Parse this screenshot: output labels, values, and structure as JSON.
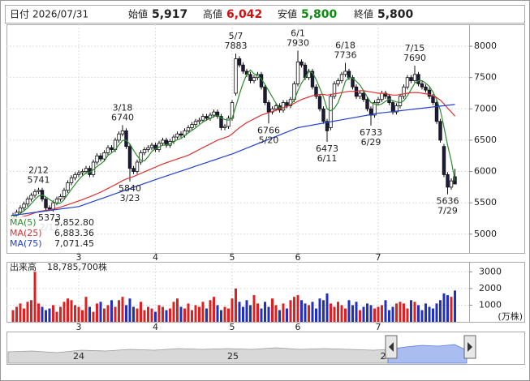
{
  "header": {
    "date_label": "日付",
    "date": "2026/07/31",
    "open_label": "始値",
    "open": "5,917",
    "high_label": "高値",
    "high": "6,042",
    "low_label": "安値",
    "low": "5,800",
    "close_label": "終値",
    "close": "5,800"
  },
  "navigator": {
    "labels": [
      "24",
      "25",
      "2"
    ]
  },
  "chart_data": {
    "type": "candlestick",
    "categories": [
      "2/2",
      "2/3",
      "2/4",
      "2/5",
      "2/6",
      "2/9",
      "2/10",
      "2/12",
      "2/13",
      "2/16",
      "2/17",
      "2/18",
      "2/19",
      "2/20",
      "2/24",
      "2/25",
      "2/26",
      "2/27",
      "3/2",
      "3/3",
      "3/4",
      "3/5",
      "3/6",
      "3/9",
      "3/10",
      "3/11",
      "3/12",
      "3/13",
      "3/16",
      "3/17",
      "3/18",
      "3/19",
      "3/23",
      "3/24",
      "3/25",
      "3/26",
      "3/27",
      "3/30",
      "3/31",
      "4/1",
      "4/2",
      "4/3",
      "4/6",
      "4/7",
      "4/8",
      "4/9",
      "4/10",
      "4/13",
      "4/14",
      "4/15",
      "4/16",
      "4/17",
      "4/20",
      "4/21",
      "4/22",
      "4/23",
      "4/24",
      "4/27",
      "4/28",
      "4/30",
      "5/1",
      "5/7",
      "5/8",
      "5/11",
      "5/12",
      "5/13",
      "5/14",
      "5/15",
      "5/18",
      "5/19",
      "5/20",
      "5/21",
      "5/22",
      "5/25",
      "5/26",
      "5/27",
      "5/28",
      "5/29",
      "6/1",
      "6/2",
      "6/3",
      "6/4",
      "6/5",
      "6/8",
      "6/9",
      "6/10",
      "6/11",
      "6/12",
      "6/15",
      "6/16",
      "6/17",
      "6/18",
      "6/19",
      "6/22",
      "6/23",
      "6/24",
      "6/25",
      "6/26",
      "6/29",
      "6/30",
      "7/1",
      "7/2",
      "7/3",
      "7/6",
      "7/7",
      "7/8",
      "7/9",
      "7/10",
      "7/13",
      "7/14",
      "7/15",
      "7/16",
      "7/17",
      "7/21",
      "7/22",
      "7/23",
      "7/24",
      "7/27",
      "7/28",
      "7/29",
      "7/30",
      "7/31"
    ],
    "open": [
      5260,
      5300,
      5350,
      5420,
      5480,
      5560,
      5620,
      5680,
      5700,
      5560,
      5420,
      5400,
      5500,
      5560,
      5600,
      5700,
      5820,
      5900,
      5950,
      5980,
      6000,
      6050,
      5950,
      6150,
      6250,
      6200,
      6300,
      6380,
      6350,
      6500,
      6600,
      6650,
      6400,
      6050,
      6000,
      6150,
      6300,
      6350,
      6380,
      6420,
      6350,
      6450,
      6500,
      6420,
      6480,
      6550,
      6600,
      6580,
      6650,
      6700,
      6750,
      6800,
      6820,
      6880,
      6850,
      6900,
      6950,
      6880,
      6700,
      6720,
      6850,
      7250,
      7800,
      7700,
      7600,
      7550,
      7450,
      7500,
      7550,
      7350,
      7100,
      6950,
      7000,
      7050,
      6980,
      7100,
      7050,
      7150,
      7400,
      7750,
      7700,
      7500,
      7600,
      7350,
      7200,
      7000,
      6800,
      6700,
      7200,
      7400,
      7450,
      7550,
      7600,
      7500,
      7350,
      7200,
      7250,
      7150,
      7000,
      6900,
      7100,
      7150,
      7250,
      7200,
      7100,
      6950,
      7050,
      7200,
      7350,
      7500,
      7450,
      7550,
      7400,
      7350,
      7300,
      7200,
      7100,
      6800,
      6400,
      5950,
      5750,
      5917
    ],
    "high": [
      5340,
      5390,
      5460,
      5520,
      5600,
      5660,
      5720,
      5741,
      5740,
      5600,
      5460,
      5540,
      5600,
      5640,
      5740,
      5860,
      5940,
      5990,
      6020,
      6040,
      6090,
      6090,
      6190,
      6290,
      6290,
      6340,
      6420,
      6420,
      6540,
      6640,
      6740,
      6690,
      6440,
      6090,
      6190,
      6340,
      6390,
      6420,
      6460,
      6460,
      6490,
      6540,
      6540,
      6520,
      6590,
      6640,
      6640,
      6690,
      6740,
      6790,
      6840,
      6860,
      6920,
      6920,
      6940,
      6990,
      6990,
      6920,
      6760,
      6890,
      7140,
      7883,
      7840,
      7740,
      7640,
      7590,
      7540,
      7590,
      7590,
      7390,
      7140,
      7040,
      7090,
      7090,
      7140,
      7140,
      7190,
      7440,
      7930,
      7790,
      7740,
      7640,
      7640,
      7390,
      7240,
      7040,
      6840,
      7240,
      7440,
      7490,
      7590,
      7736,
      7640,
      7540,
      7390,
      7290,
      7290,
      7190,
      7040,
      7140,
      7190,
      7290,
      7290,
      7240,
      7140,
      7090,
      7240,
      7390,
      7540,
      7540,
      7690,
      7590,
      7440,
      7390,
      7340,
      7240,
      7140,
      6840,
      6440,
      5990,
      5890,
      6042
    ],
    "low": [
      5220,
      5260,
      5310,
      5380,
      5440,
      5520,
      5580,
      5640,
      5520,
      5380,
      5373,
      5360,
      5460,
      5520,
      5560,
      5660,
      5780,
      5860,
      5910,
      5940,
      5960,
      5910,
      5910,
      6110,
      6160,
      6160,
      6260,
      6310,
      6310,
      6460,
      6560,
      6360,
      5840,
      5960,
      5960,
      6110,
      6260,
      6310,
      6340,
      6310,
      6310,
      6410,
      6380,
      6380,
      6440,
      6510,
      6540,
      6540,
      6610,
      6660,
      6710,
      6760,
      6780,
      6810,
      6810,
      6860,
      6840,
      6660,
      6660,
      6680,
      6810,
      7210,
      7660,
      7560,
      7510,
      7410,
      7410,
      7460,
      7310,
      7060,
      6766,
      6910,
      6960,
      6940,
      6940,
      7010,
      7010,
      7110,
      7360,
      7660,
      7460,
      7460,
      7310,
      7160,
      6960,
      6760,
      6473,
      6660,
      7160,
      7360,
      7410,
      7510,
      7460,
      7310,
      7160,
      7160,
      7110,
      6960,
      6733,
      6860,
      7060,
      7110,
      7160,
      7060,
      6910,
      6910,
      7010,
      7160,
      7310,
      7410,
      7410,
      7360,
      7310,
      7260,
      7160,
      7060,
      6760,
      6460,
      5910,
      5636,
      5710,
      5800
    ],
    "close": [
      5300,
      5350,
      5420,
      5480,
      5560,
      5620,
      5680,
      5700,
      5560,
      5420,
      5400,
      5500,
      5560,
      5600,
      5700,
      5820,
      5900,
      5950,
      5980,
      6000,
      6050,
      5950,
      6150,
      6250,
      6200,
      6300,
      6380,
      6350,
      6500,
      6600,
      6650,
      6400,
      6050,
      6000,
      6150,
      6300,
      6350,
      6380,
      6420,
      6350,
      6450,
      6500,
      6420,
      6480,
      6550,
      6600,
      6580,
      6650,
      6700,
      6750,
      6800,
      6820,
      6880,
      6850,
      6900,
      6950,
      6880,
      6700,
      6720,
      6850,
      7100,
      7800,
      7700,
      7600,
      7550,
      7450,
      7500,
      7550,
      7350,
      7100,
      6950,
      7000,
      7050,
      6980,
      7100,
      7050,
      7150,
      7400,
      7750,
      7700,
      7500,
      7600,
      7350,
      7200,
      7000,
      6800,
      6650,
      7200,
      7400,
      7450,
      7550,
      7600,
      7500,
      7350,
      7200,
      7250,
      7150,
      7000,
      6900,
      7100,
      7150,
      7250,
      7200,
      7100,
      6950,
      7050,
      7200,
      7350,
      7500,
      7450,
      7550,
      7400,
      7350,
      7300,
      7200,
      7100,
      6800,
      6500,
      5950,
      5750,
      5850,
      5800
    ],
    "up_color": "#ffffff",
    "down_color": "#1c1c3c",
    "edge_color": "#111111",
    "ylim": [
      4700,
      8350
    ],
    "yticks": [
      5000,
      5500,
      6000,
      6500,
      7000,
      7500,
      8000
    ],
    "grid": true,
    "month_ticks": [
      {
        "value": "3/2",
        "label": "3"
      },
      {
        "value": "4/1",
        "label": "4"
      },
      {
        "value": "5/1",
        "label": "5"
      },
      {
        "value": "6/1",
        "label": "6"
      },
      {
        "value": "7/1",
        "label": "7"
      }
    ],
    "ma": [
      {
        "name": "MA(5)",
        "color": "#2e8b2e",
        "last_label": "5,852.80",
        "values": [
          5280,
          5300,
          5330,
          5370,
          5422,
          5486,
          5552,
          5608,
          5624,
          5596,
          5552,
          5516,
          5488,
          5496,
          5552,
          5636,
          5716,
          5794,
          5870,
          5930,
          5976,
          5986,
          6026,
          6080,
          6120,
          6170,
          6256,
          6296,
          6346,
          6426,
          6496,
          6500,
          6440,
          6340,
          6250,
          6180,
          6170,
          6236,
          6320,
          6360,
          6390,
          6420,
          6428,
          6440,
          6480,
          6510,
          6526,
          6572,
          6616,
          6656,
          6696,
          6744,
          6790,
          6820,
          6850,
          6880,
          6892,
          6856,
          6830,
          6820,
          6850,
          7034,
          7234,
          7410,
          7550,
          7620,
          7560,
          7530,
          7480,
          7390,
          7290,
          7190,
          7090,
          7016,
          7016,
          7036,
          7066,
          7136,
          7290,
          7410,
          7500,
          7590,
          7580,
          7470,
          7330,
          7190,
          7000,
          6970,
          7010,
          7100,
          7250,
          7440,
          7500,
          7490,
          7440,
          7380,
          7290,
          7190,
          7100,
          7080,
          7060,
          7080,
          7120,
          7160,
          7130,
          7110,
          7100,
          7130,
          7210,
          7310,
          7410,
          7450,
          7450,
          7410,
          7360,
          7270,
          7150,
          6980,
          6710,
          6420,
          6170,
          5852.8
        ]
      },
      {
        "name": "MA(25)",
        "color": "#e03030",
        "last_label": "6,883.36",
        "values": [
          5250,
          5260,
          5270,
          5285,
          5300,
          5320,
          5340,
          5360,
          5370,
          5380,
          5390,
          5400,
          5415,
          5430,
          5450,
          5470,
          5490,
          5510,
          5530,
          5550,
          5575,
          5595,
          5620,
          5645,
          5670,
          5700,
          5730,
          5760,
          5790,
          5820,
          5855,
          5880,
          5900,
          5920,
          5945,
          5970,
          5995,
          6020,
          6045,
          6070,
          6095,
          6120,
          6140,
          6160,
          6180,
          6200,
          6220,
          6240,
          6260,
          6290,
          6320,
          6350,
          6380,
          6410,
          6440,
          6470,
          6500,
          6520,
          6540,
          6560,
          6600,
          6650,
          6700,
          6740,
          6780,
          6810,
          6840,
          6870,
          6900,
          6920,
          6940,
          6960,
          6980,
          7000,
          7020,
          7040,
          7060,
          7090,
          7120,
          7150,
          7170,
          7190,
          7210,
          7220,
          7230,
          7230,
          7220,
          7230,
          7240,
          7250,
          7260,
          7270,
          7280,
          7280,
          7280,
          7290,
          7290,
          7280,
          7270,
          7260,
          7250,
          7250,
          7240,
          7230,
          7220,
          7220,
          7230,
          7240,
          7250,
          7260,
          7260,
          7260,
          7250,
          7240,
          7230,
          7210,
          7180,
          7140,
          7080,
          7010,
          6950,
          6883.36
        ]
      },
      {
        "name": "MA(75)",
        "color": "#2040d0",
        "last_label": "7,071.45",
        "values": [
          5300,
          5308,
          5316,
          5323,
          5331,
          5339,
          5347,
          5354,
          5362,
          5370,
          5378,
          5386,
          5393,
          5401,
          5409,
          5417,
          5424,
          5432,
          5440,
          5460,
          5481,
          5501,
          5522,
          5542,
          5563,
          5583,
          5604,
          5624,
          5645,
          5665,
          5686,
          5706,
          5727,
          5747,
          5768,
          5788,
          5809,
          5829,
          5850,
          5870,
          5890,
          5909,
          5929,
          5948,
          5968,
          5987,
          6007,
          6026,
          6046,
          6065,
          6085,
          6104,
          6124,
          6143,
          6163,
          6182,
          6202,
          6221,
          6241,
          6260,
          6280,
          6303,
          6327,
          6350,
          6373,
          6397,
          6420,
          6443,
          6467,
          6490,
          6513,
          6537,
          6560,
          6583,
          6607,
          6630,
          6653,
          6677,
          6700,
          6710,
          6721,
          6731,
          6742,
          6752,
          6763,
          6773,
          6784,
          6794,
          6805,
          6815,
          6825,
          6836,
          6846,
          6857,
          6867,
          6878,
          6888,
          6899,
          6909,
          6920,
          6930,
          6937,
          6943,
          6950,
          6957,
          6964,
          6970,
          6977,
          6984,
          6990,
          6997,
          7004,
          7010,
          7017,
          7024,
          7031,
          7037,
          7044,
          7051,
          7057,
          7064,
          7071.45
        ]
      }
    ],
    "annotations": [
      {
        "date": "2/12",
        "value": 5741,
        "side": "above"
      },
      {
        "date": "2/17",
        "value": 5373,
        "side": "below"
      },
      {
        "date": "3/18",
        "value": 6740,
        "side": "above"
      },
      {
        "date": "3/23",
        "value": 5840,
        "side": "below"
      },
      {
        "date": "5/7",
        "value": 7883,
        "side": "above"
      },
      {
        "date": "5/20",
        "value": 6766,
        "side": "below"
      },
      {
        "date": "6/1",
        "value": 7930,
        "side": "above"
      },
      {
        "date": "6/11",
        "value": 6473,
        "side": "below"
      },
      {
        "date": "6/18",
        "value": 7736,
        "side": "above"
      },
      {
        "date": "6/29",
        "value": 6733,
        "side": "below"
      },
      {
        "date": "7/15",
        "value": 7690,
        "side": "above"
      },
      {
        "date": "7/29",
        "value": 5636,
        "side": "below"
      }
    ],
    "volume": {
      "label": "出来高",
      "total": "18,785,700株",
      "unit_label": "(万株)",
      "up_color": "#e02020",
      "down_color": "#2030c0",
      "ylim": [
        0,
        3600
      ],
      "yticks": [
        1000,
        2000,
        3000
      ],
      "values": [
        700,
        900,
        1100,
        800,
        1200,
        1300,
        3000,
        1100,
        900,
        700,
        800,
        1000,
        600,
        900,
        1200,
        1400,
        1300,
        1000,
        900,
        700,
        1500,
        900,
        600,
        1100,
        1200,
        800,
        1000,
        1300,
        900,
        1300,
        1500,
        1000,
        1400,
        900,
        800,
        1200,
        700,
        900,
        800,
        600,
        1000,
        900,
        700,
        800,
        1200,
        1400,
        900,
        800,
        1100,
        700,
        1000,
        900,
        1200,
        800,
        1300,
        1500,
        1000,
        700,
        900,
        800,
        1400,
        2000,
        1200,
        900,
        1300,
        1000,
        1600,
        1100,
        800,
        1200,
        900,
        1400,
        1000,
        700,
        1100,
        800,
        1300,
        1500,
        1600,
        1300,
        1100,
        1000,
        1200,
        800,
        1400,
        1300,
        1700,
        1100,
        900,
        1200,
        1000,
        800,
        1300,
        1000,
        1200,
        700,
        900,
        1100,
        1000,
        800,
        900,
        1000,
        1300,
        700,
        900,
        1100,
        1200,
        1100,
        800,
        1300,
        1200,
        1000,
        700,
        1100,
        900,
        800,
        1100,
        1300,
        1700,
        1600,
        1500,
        1878.57
      ]
    }
  }
}
